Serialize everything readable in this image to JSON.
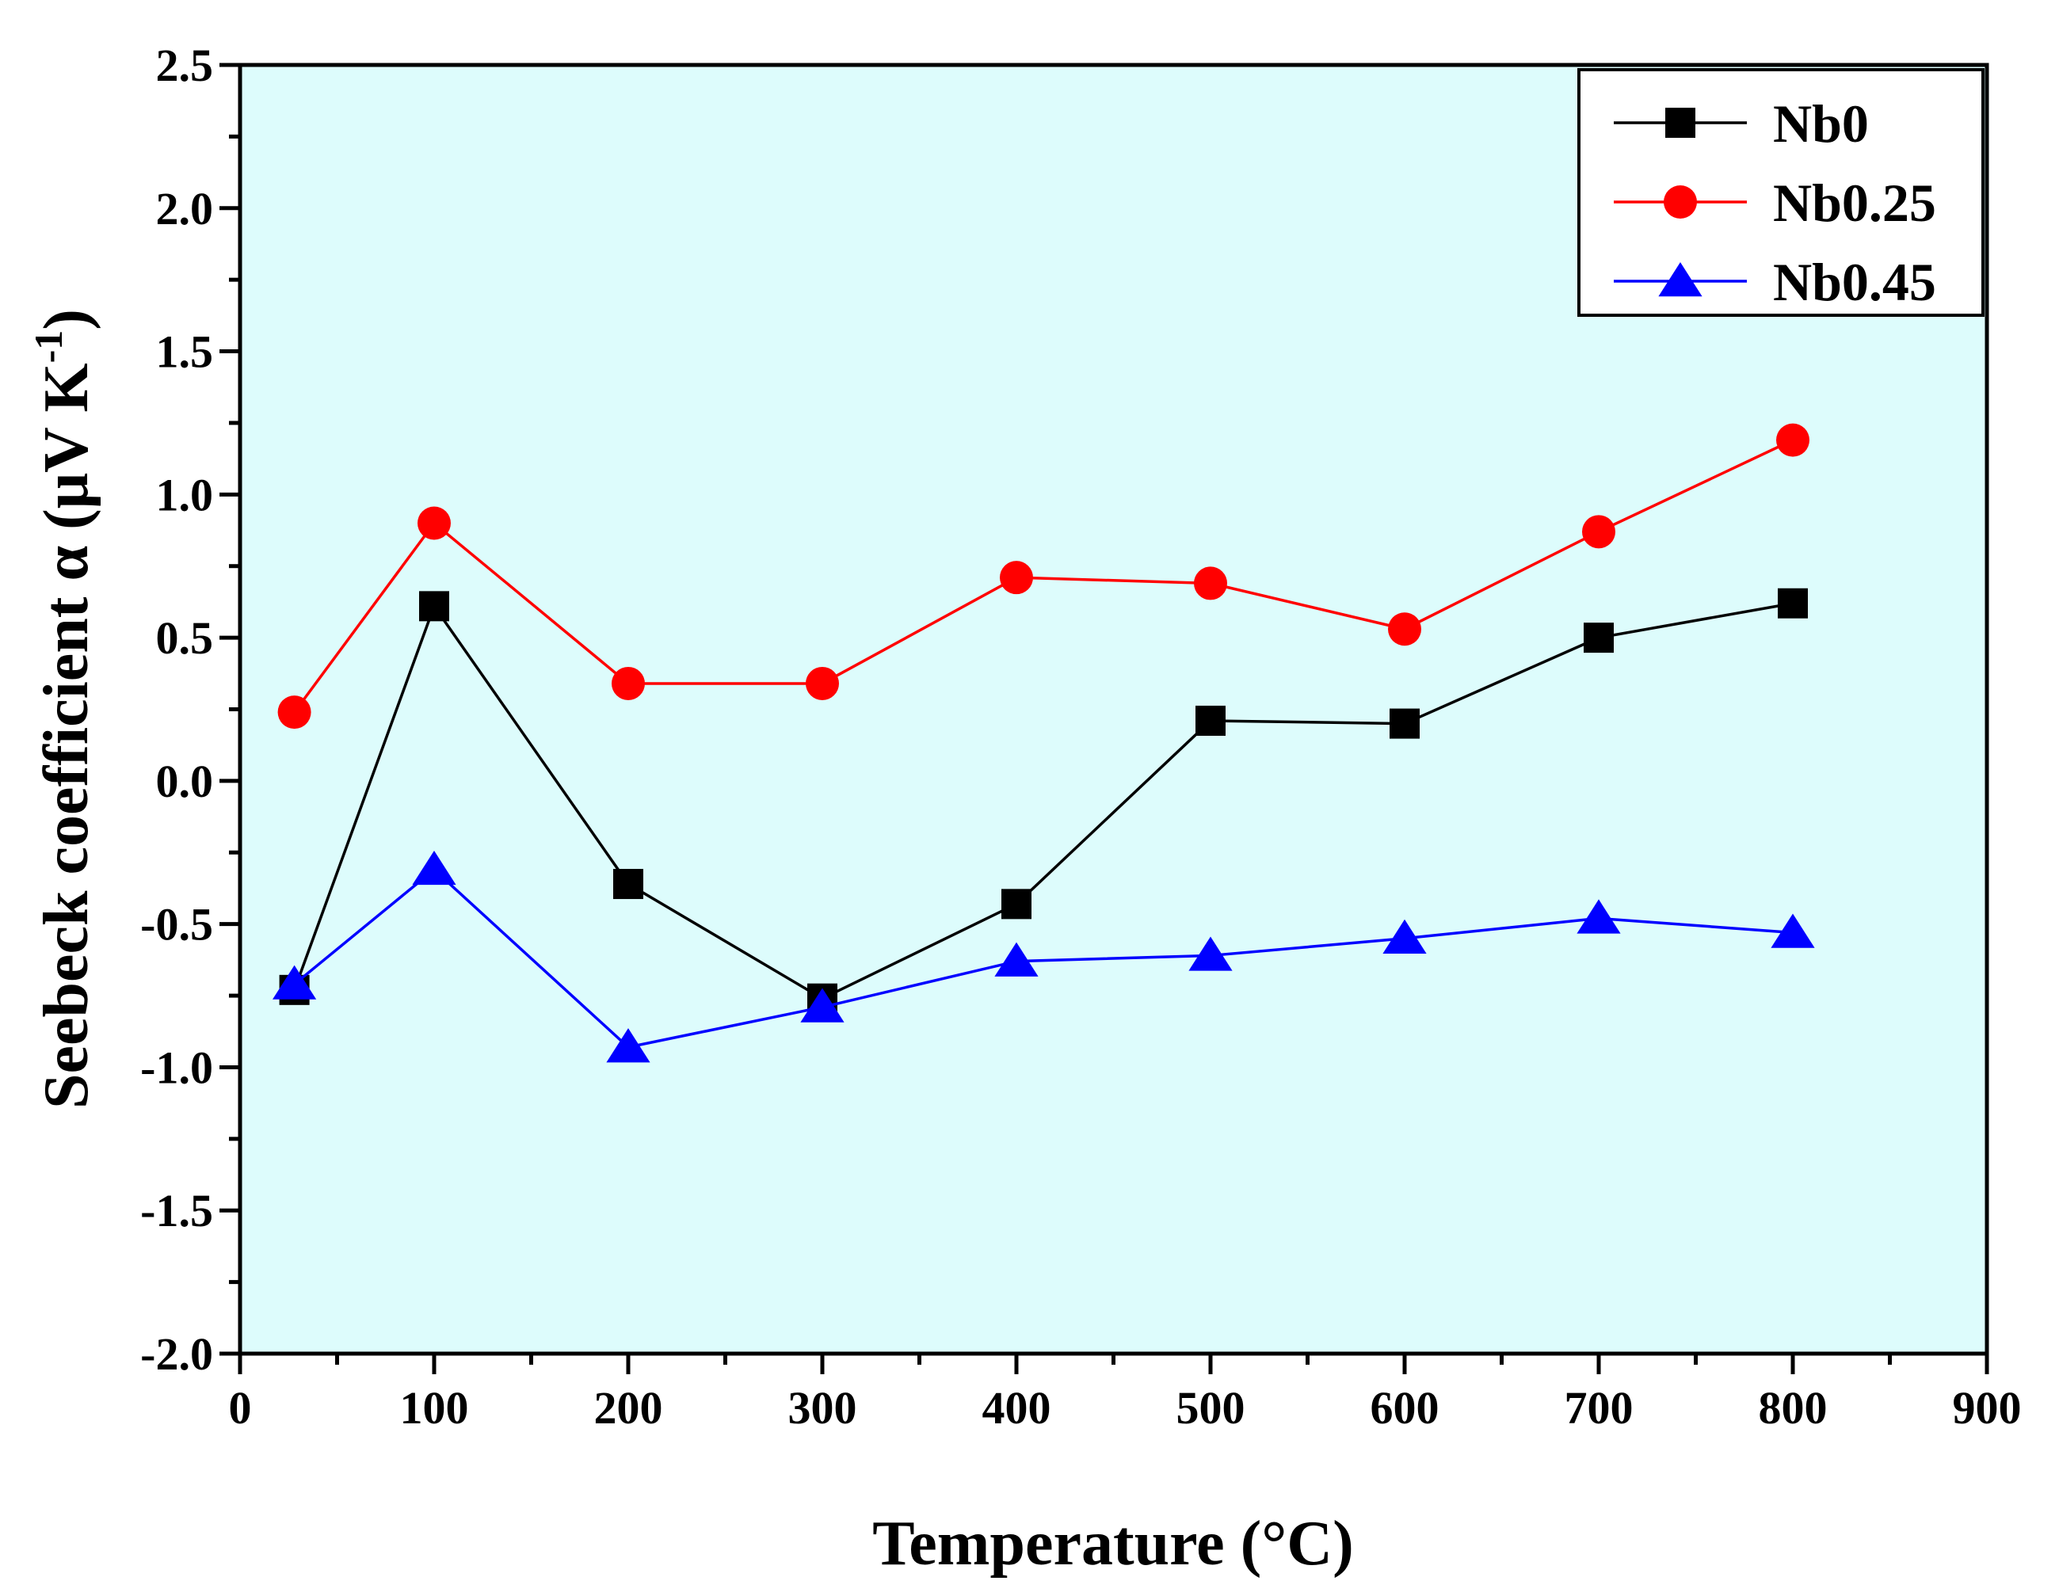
{
  "chart_data": {
    "type": "line",
    "title": "",
    "xlabel": "Temperature (°C)",
    "ylabel_prefix": "Seebeck coefficient α (μV K",
    "ylabel_superscript": "-1",
    "ylabel_suffix": ")",
    "xlim": [
      0,
      900
    ],
    "ylim": [
      -2.0,
      2.5
    ],
    "x_ticks": [
      "0",
      "100",
      "200",
      "300",
      "400",
      "500",
      "600",
      "700",
      "800",
      "900"
    ],
    "y_ticks": [
      "-2.0",
      "-1.5",
      "-1.0",
      "-0.5",
      "0.0",
      "0.5",
      "1.0",
      "1.5",
      "2.0",
      "2.5"
    ],
    "plot_background": "#DDFCFC",
    "legend_position": "top-right",
    "series": [
      {
        "name": "Nb0",
        "color": "#000000",
        "marker": "square",
        "x": [
          28,
          100,
          200,
          300,
          400,
          500,
          600,
          700,
          800
        ],
        "y": [
          -0.73,
          0.61,
          -0.36,
          -0.76,
          -0.43,
          0.21,
          0.2,
          0.5,
          0.62
        ]
      },
      {
        "name": "Nb0.25",
        "color": "#FF0000",
        "marker": "circle",
        "x": [
          28,
          100,
          200,
          300,
          400,
          500,
          600,
          700,
          800
        ],
        "y": [
          0.24,
          0.9,
          0.34,
          0.34,
          0.71,
          0.69,
          0.53,
          0.87,
          1.19
        ]
      },
      {
        "name": "Nb0.45",
        "color": "#0000FF",
        "marker": "triangle",
        "x": [
          28,
          100,
          200,
          300,
          400,
          500,
          600,
          700,
          800
        ],
        "y": [
          -0.71,
          -0.31,
          -0.93,
          -0.79,
          -0.63,
          -0.61,
          -0.55,
          -0.48,
          -0.53
        ]
      }
    ]
  }
}
